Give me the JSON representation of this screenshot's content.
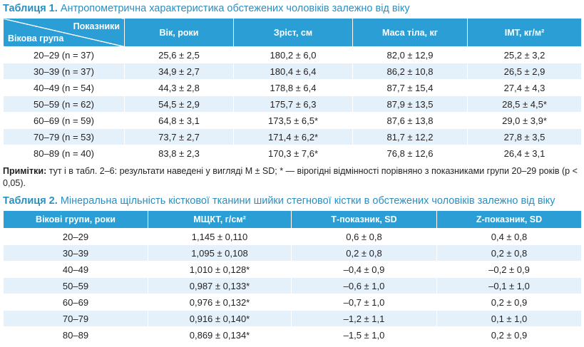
{
  "table1": {
    "caption_label": "Таблиця 1.",
    "caption_text": "Антропометрична характеристика обстежених чоловіків залежно від віку",
    "corner_top": "Показники",
    "corner_bottom": "Вікова група",
    "columns": [
      "Вік, роки",
      "Зріст, см",
      "Маса тіла, кг",
      "ІМТ, кг/м²"
    ],
    "rows": [
      [
        "20–29 (n = 37)",
        "25,6 ± 2,5",
        "180,2 ± 6,0",
        "82,0 ± 12,9",
        "25,2 ± 3,2"
      ],
      [
        "30–39 (n = 37)",
        "34,9 ± 2,7",
        "180,4 ± 6,4",
        "86,2 ± 10,8",
        "26,5 ± 2,9"
      ],
      [
        "40–49 (n = 54)",
        "44,3 ± 2,8",
        "178,8 ± 6,4",
        "87,7 ± 15,4",
        "27,4 ± 4,3"
      ],
      [
        "50–59 (n = 62)",
        "54,5 ± 2,9",
        "175,7 ± 6,3",
        "87,9 ± 13,5",
        "28,5 ± 4,5*"
      ],
      [
        "60–69 (n = 59)",
        "64,8 ± 3,1",
        "173,5 ± 6,5*",
        "87,6 ± 13,8",
        "29,0 ± 3,9*"
      ],
      [
        "70–79 (n = 53)",
        "73,7 ± 2,7",
        "171,4 ± 6,2*",
        "81,7 ± 12,2",
        "27,8 ± 3,5"
      ],
      [
        "80–89 (n = 40)",
        "83,8 ± 2,3",
        "170,3 ± 7,6*",
        "76,8 ± 12,6",
        "26,4 ± 3,1"
      ]
    ]
  },
  "notes": {
    "label": "Примітки:",
    "text": " тут і в табл. 2–6: результати наведені у вигляді M ± SD; * — вірогідні відмінності порівняно з показниками групи 20–29 років (p < 0,05)."
  },
  "table2": {
    "caption_label": "Таблиця 2.",
    "caption_text": "Мінеральна щільність кісткової тканини шийки стегнової кістки в обстежених чоловіків залежно від віку",
    "columns": [
      "Вікові групи, роки",
      "МЩКТ, г/см²",
      "Т-показник, SD",
      "Z-показник, SD"
    ],
    "rows": [
      [
        "20–29",
        "1,145 ± 0,110",
        "0,6 ± 0,8",
        "0,4 ± 0,8"
      ],
      [
        "30–39",
        "1,095 ± 0,108",
        "0,2 ± 0,8",
        "0,2 ± 0,8"
      ],
      [
        "40–49",
        "1,010 ± 0,128*",
        "–0,4 ± 0,9",
        "–0,2 ± 0,9"
      ],
      [
        "50–59",
        "0,987 ± 0,133*",
        "–0,6 ± 1,0",
        "–0,1 ± 1,0"
      ],
      [
        "60–69",
        "0,976 ± 0,132*",
        "–0,7 ± 1,0",
        "0,2 ± 0,9"
      ],
      [
        "70–79",
        "0,916 ± 0,140*",
        "–1,2 ± 1,1",
        "0,1 ± 1,0"
      ],
      [
        "80–89",
        "0,869 ± 0,134*",
        "–1,5 ± 1,0",
        "0,2 ± 0,9"
      ]
    ]
  },
  "colors": {
    "header_bg": "#2b9fd5",
    "caption": "#2a8fc1",
    "stripe": "#e4f1fa"
  }
}
